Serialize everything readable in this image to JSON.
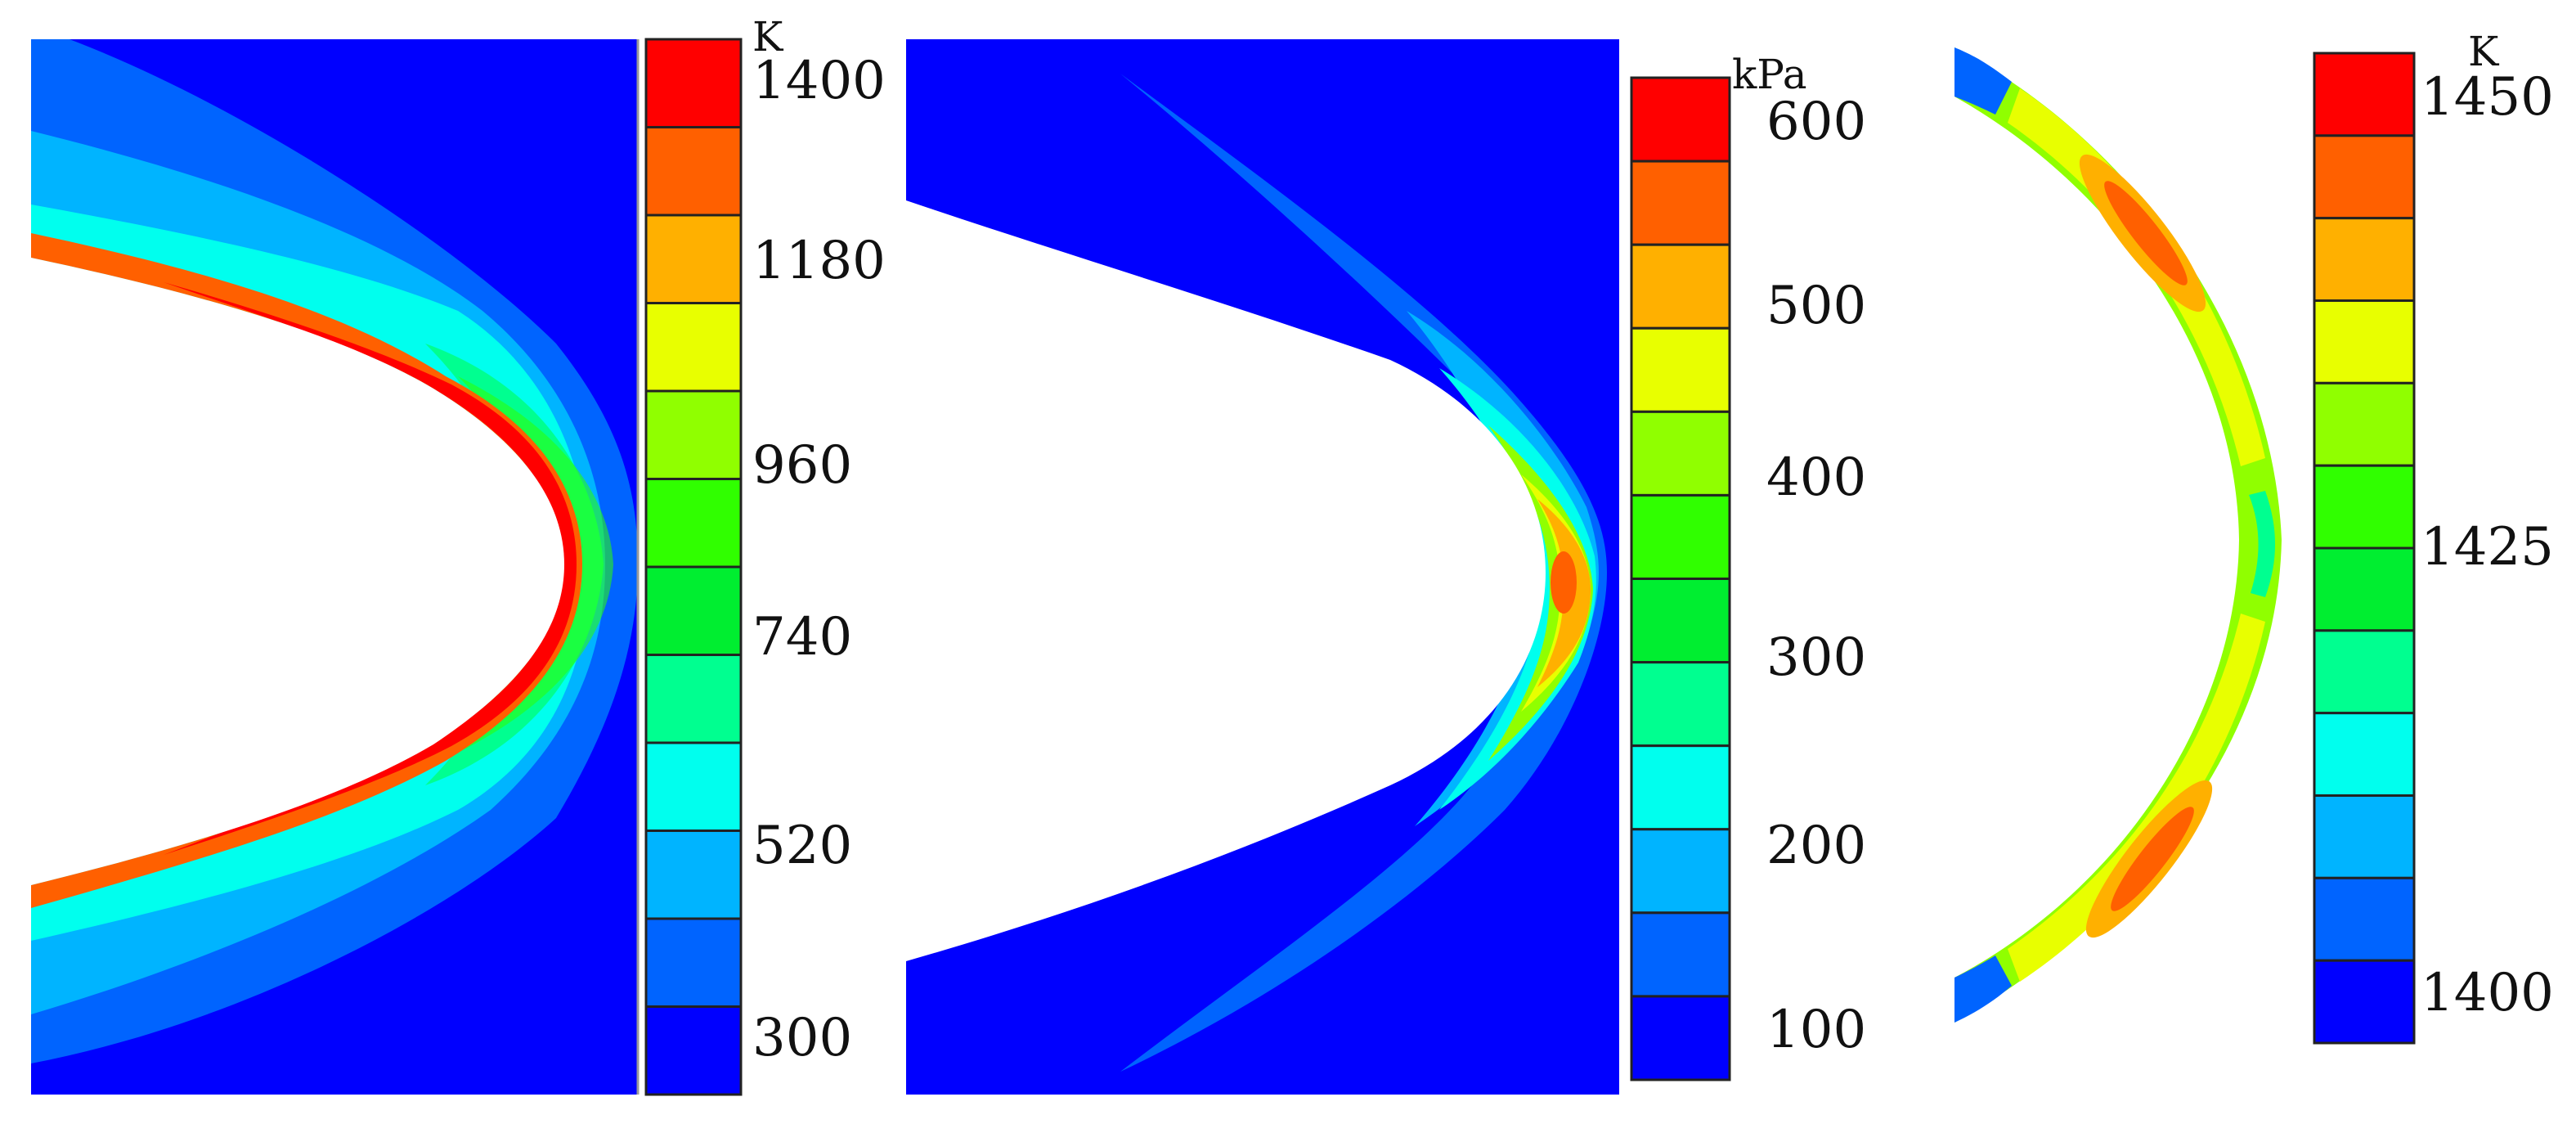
{
  "panels": [
    {
      "id": "temperature-field",
      "unit": "K",
      "ticks": [
        "1400",
        "1180",
        "960",
        "740",
        "520",
        "300"
      ],
      "colors": [
        "#ff0000",
        "#ff6000",
        "#ffb000",
        "#e8ff00",
        "#90ff00",
        "#30ff00",
        "#00ee30",
        "#00ff90",
        "#00ffee",
        "#00b4ff",
        "#0064ff",
        "#0000ff"
      ]
    },
    {
      "id": "pressure-field",
      "unit": "kPa",
      "ticks": [
        "600",
        "500",
        "400",
        "300",
        "200",
        "100"
      ],
      "colors": [
        "#ff0000",
        "#ff6000",
        "#ffb000",
        "#e8ff00",
        "#90ff00",
        "#30ff00",
        "#00ee30",
        "#00ff90",
        "#00ffee",
        "#00b4ff",
        "#0064ff",
        "#0000ff"
      ]
    },
    {
      "id": "wall-temperature",
      "unit": "K",
      "ticks": [
        "1450",
        "1425",
        "1400"
      ],
      "colors": [
        "#ff0000",
        "#ff6000",
        "#ffb000",
        "#e8ff00",
        "#90ff00",
        "#30ff00",
        "#00ee30",
        "#00ff90",
        "#00ffee",
        "#00b4ff",
        "#0064ff",
        "#0000ff"
      ]
    }
  ]
}
